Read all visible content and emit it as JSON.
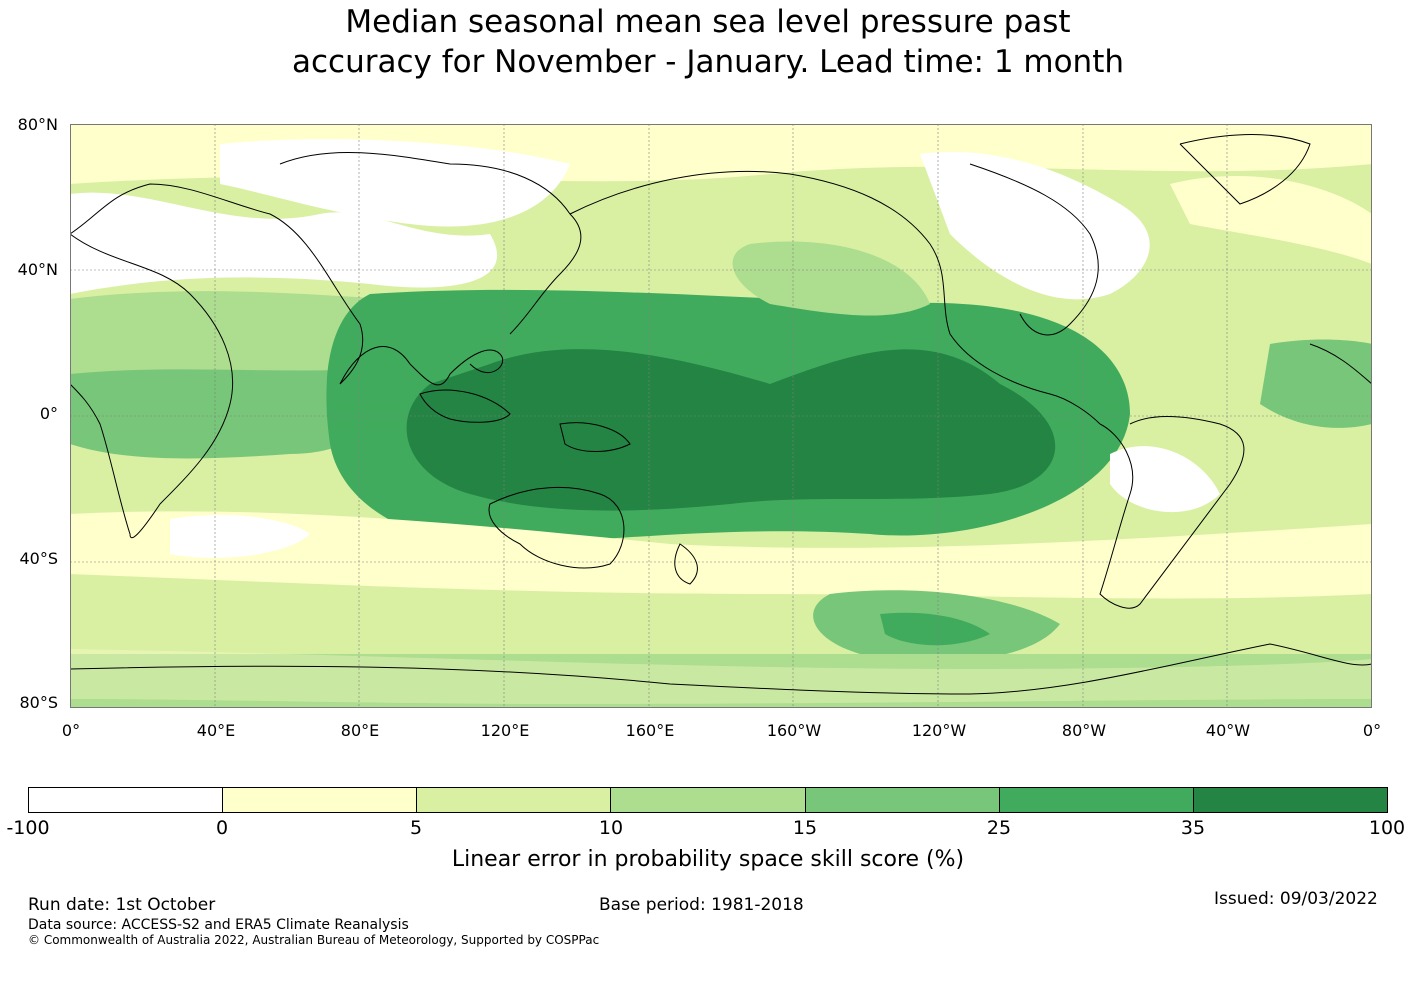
{
  "title_line1": "Median seasonal mean sea level pressure past",
  "title_line2": "accuracy for November - January. Lead time: 1 month",
  "lat_labels": [
    "80°N",
    "40°N",
    "0°",
    "40°S",
    "80°S"
  ],
  "lon_labels": [
    "0°",
    "40°E",
    "80°E",
    "120°E",
    "160°E",
    "160°W",
    "120°W",
    "80°W",
    "40°W",
    "0°"
  ],
  "colorbar": {
    "title": "Linear error in probability space skill score (%)",
    "ticks": [
      "-100",
      "0",
      "5",
      "10",
      "15",
      "25",
      "35",
      "100"
    ],
    "colors": [
      "#ffffff",
      "#ffffcc",
      "#d9f0a3",
      "#addd8e",
      "#78c679",
      "#41ab5d",
      "#238443"
    ]
  },
  "footer": {
    "run_date": "Run date: 1st October",
    "base_period": "Base period: 1981-2018",
    "issued": "Issued: 09/03/2022",
    "data_source": "Data source: ACCESS-S2 and ERA5 Climate Reanalysis",
    "copyright": "© Commonwealth of Australia 2022, Australian Bureau of Meteorology, Supported by COSPPac"
  }
}
